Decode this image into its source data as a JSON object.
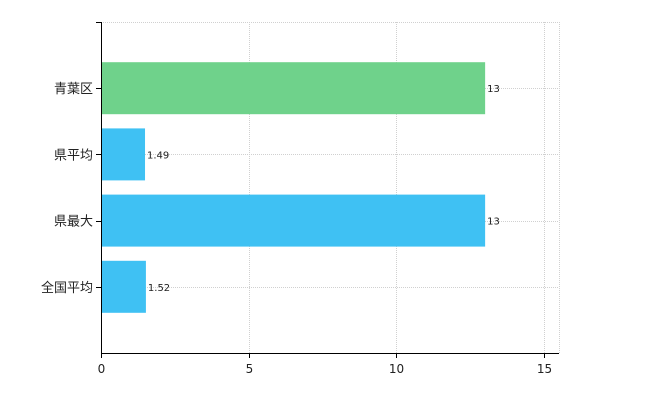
{
  "chart_data": {
    "type": "bar",
    "orientation": "horizontal",
    "categories": [
      "青葉区",
      "県平均",
      "県最大",
      "全国平均"
    ],
    "values": [
      13,
      1.49,
      13,
      1.52
    ],
    "data_labels": [
      "13",
      "1.49",
      "13",
      "1.52"
    ],
    "bar_colors": [
      "#6fd28b",
      "#3fc1f3",
      "#3fc1f3",
      "#3fc1f3"
    ],
    "xlim": [
      0,
      15.5
    ],
    "xticks": [
      0,
      5,
      10,
      15
    ],
    "xtick_labels": [
      "0",
      "5",
      "10",
      "15"
    ],
    "grid": true,
    "legend": false
  }
}
